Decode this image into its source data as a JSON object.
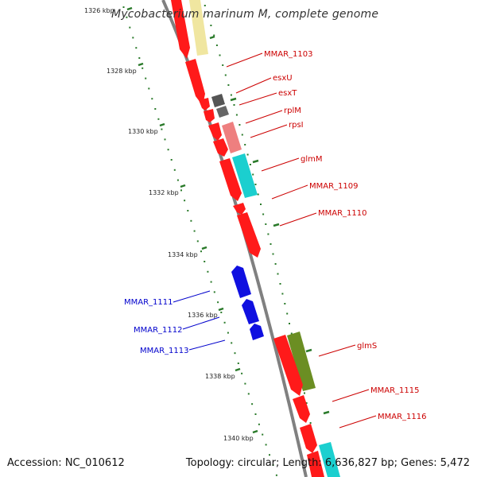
{
  "title": "Mycobacterium marinum M, complete genome",
  "footer": {
    "accession": "Accession: NC_010612",
    "topology": "Topology: circular; Length: 6,636,827 bp; Genes: 5,472"
  },
  "colors": {
    "forward_cds": "#ff1a1a",
    "reverse_cds": "#1010e0",
    "backbone": "#808080",
    "tick": "#2a7a2a",
    "label_forward": "#cc0000",
    "label_reverse": "#0000cc"
  },
  "ticks": [
    {
      "label": "1326 kbp"
    },
    {
      "label": "1328 kbp"
    },
    {
      "label": "1330 kbp"
    },
    {
      "label": "1332 kbp"
    },
    {
      "label": "1334 kbp"
    },
    {
      "label": "1336 kbp"
    },
    {
      "label": "1338 kbp"
    },
    {
      "label": "1340 kbp"
    }
  ],
  "gene_labels": [
    {
      "name": "MMAR_1103",
      "strand": "forward"
    },
    {
      "name": "esxU",
      "strand": "forward"
    },
    {
      "name": "esxT",
      "strand": "forward"
    },
    {
      "name": "rplM",
      "strand": "forward"
    },
    {
      "name": "rpsI",
      "strand": "forward"
    },
    {
      "name": "glmM",
      "strand": "forward"
    },
    {
      "name": "MMAR_1109",
      "strand": "forward"
    },
    {
      "name": "MMAR_1110",
      "strand": "forward"
    },
    {
      "name": "glmS",
      "strand": "forward"
    },
    {
      "name": "MMAR_1115",
      "strand": "forward"
    },
    {
      "name": "MMAR_1116",
      "strand": "forward"
    },
    {
      "name": "MMAR_1111",
      "strand": "reverse"
    },
    {
      "name": "MMAR_1112",
      "strand": "reverse"
    },
    {
      "name": "MMAR_1113",
      "strand": "reverse"
    }
  ]
}
